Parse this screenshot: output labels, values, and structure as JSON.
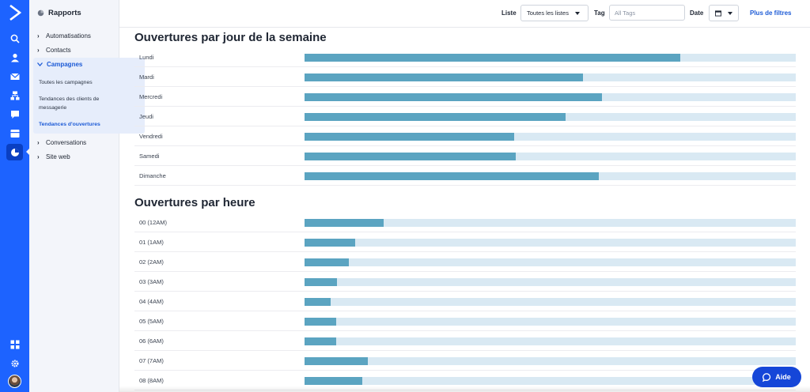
{
  "sidebar_title": "Rapports",
  "nav": {
    "items_top": [
      {
        "label": "Automatisations"
      },
      {
        "label": "Contacts"
      }
    ],
    "campaigns": {
      "label": "Campagnes",
      "children": [
        {
          "label": "Toutes les campagnes"
        },
        {
          "label": "Tendances des clients de messagerie"
        },
        {
          "label": "Tendances d'ouvertures"
        }
      ]
    },
    "items_bottom": [
      {
        "label": "Conversations"
      },
      {
        "label": "Site web"
      }
    ]
  },
  "filters": {
    "list_label": "Liste",
    "list_value": "Toutes les listes",
    "tag_label": "Tag",
    "tag_placeholder": "All Tags",
    "date_label": "Date",
    "more_filters": "Plus de filtres"
  },
  "weekday_section": {
    "title": "Ouvertures par jour de la semaine",
    "rows": [
      {
        "label": "Lundi",
        "fraction": 0.765
      },
      {
        "label": "Mardi",
        "fraction": 0.567
      },
      {
        "label": "Mercredi",
        "fraction": 0.606
      },
      {
        "label": "Jeudi",
        "fraction": 0.532
      },
      {
        "label": "Vendredi",
        "fraction": 0.426
      },
      {
        "label": "Samedi",
        "fraction": 0.43
      },
      {
        "label": "Dimanche",
        "fraction": 0.599
      }
    ]
  },
  "hour_section": {
    "title": "Ouvertures par heure",
    "rows": [
      {
        "label": "00 (12AM)",
        "fraction": 0.161
      },
      {
        "label": "01 (1AM)",
        "fraction": 0.103
      },
      {
        "label": "02 (2AM)",
        "fraction": 0.09
      },
      {
        "label": "03 (3AM)",
        "fraction": 0.066
      },
      {
        "label": "04 (4AM)",
        "fraction": 0.053
      },
      {
        "label": "05 (5AM)",
        "fraction": 0.065
      },
      {
        "label": "06 (6AM)",
        "fraction": 0.065
      },
      {
        "label": "07 (7AM)",
        "fraction": 0.129
      },
      {
        "label": "08 (8AM)",
        "fraction": 0.118
      }
    ]
  },
  "colors": {
    "rail": "#1d63ff",
    "bar_fill": "#5ba4c1",
    "bar_track": "#d9e9f3",
    "link": "#1d5bd6",
    "help_button": "#1546d8"
  },
  "help_label": "Aide"
}
